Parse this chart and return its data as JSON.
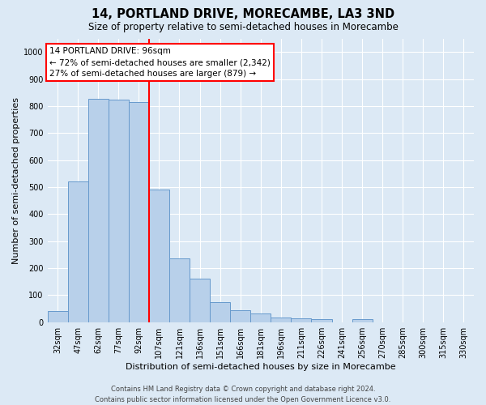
{
  "title": "14, PORTLAND DRIVE, MORECAMBE, LA3 3ND",
  "subtitle": "Size of property relative to semi-detached houses in Morecambe",
  "xlabel": "Distribution of semi-detached houses by size in Morecambe",
  "ylabel": "Number of semi-detached properties",
  "categories": [
    "32sqm",
    "47sqm",
    "62sqm",
    "77sqm",
    "92sqm",
    "107sqm",
    "121sqm",
    "136sqm",
    "151sqm",
    "166sqm",
    "181sqm",
    "196sqm",
    "211sqm",
    "226sqm",
    "241sqm",
    "256sqm",
    "270sqm",
    "285sqm",
    "300sqm",
    "315sqm",
    "330sqm"
  ],
  "values": [
    42,
    520,
    828,
    825,
    815,
    492,
    235,
    160,
    75,
    45,
    32,
    18,
    13,
    10,
    0,
    10,
    0,
    0,
    0,
    0,
    0
  ],
  "bar_color": "#b8d0ea",
  "bar_edge_color": "#6699cc",
  "bar_width": 1.0,
  "vline_x": 4.5,
  "vline_color": "red",
  "annotation_line1": "14 PORTLAND DRIVE: 96sqm",
  "annotation_line2": "← 72% of semi-detached houses are smaller (2,342)",
  "annotation_line3": "27% of semi-detached houses are larger (879) →",
  "annotation_box_color": "white",
  "annotation_box_edge": "red",
  "ylim": [
    0,
    1050
  ],
  "yticks": [
    0,
    100,
    200,
    300,
    400,
    500,
    600,
    700,
    800,
    900,
    1000
  ],
  "footer_line1": "Contains HM Land Registry data © Crown copyright and database right 2024.",
  "footer_line2": "Contains public sector information licensed under the Open Government Licence v3.0.",
  "bg_color": "#dce9f5",
  "plot_bg_color": "#dce9f5",
  "grid_color": "white",
  "title_fontsize": 10.5,
  "subtitle_fontsize": 8.5,
  "tick_fontsize": 7,
  "ylabel_fontsize": 8,
  "xlabel_fontsize": 8,
  "footer_fontsize": 6,
  "annot_fontsize": 7.5
}
